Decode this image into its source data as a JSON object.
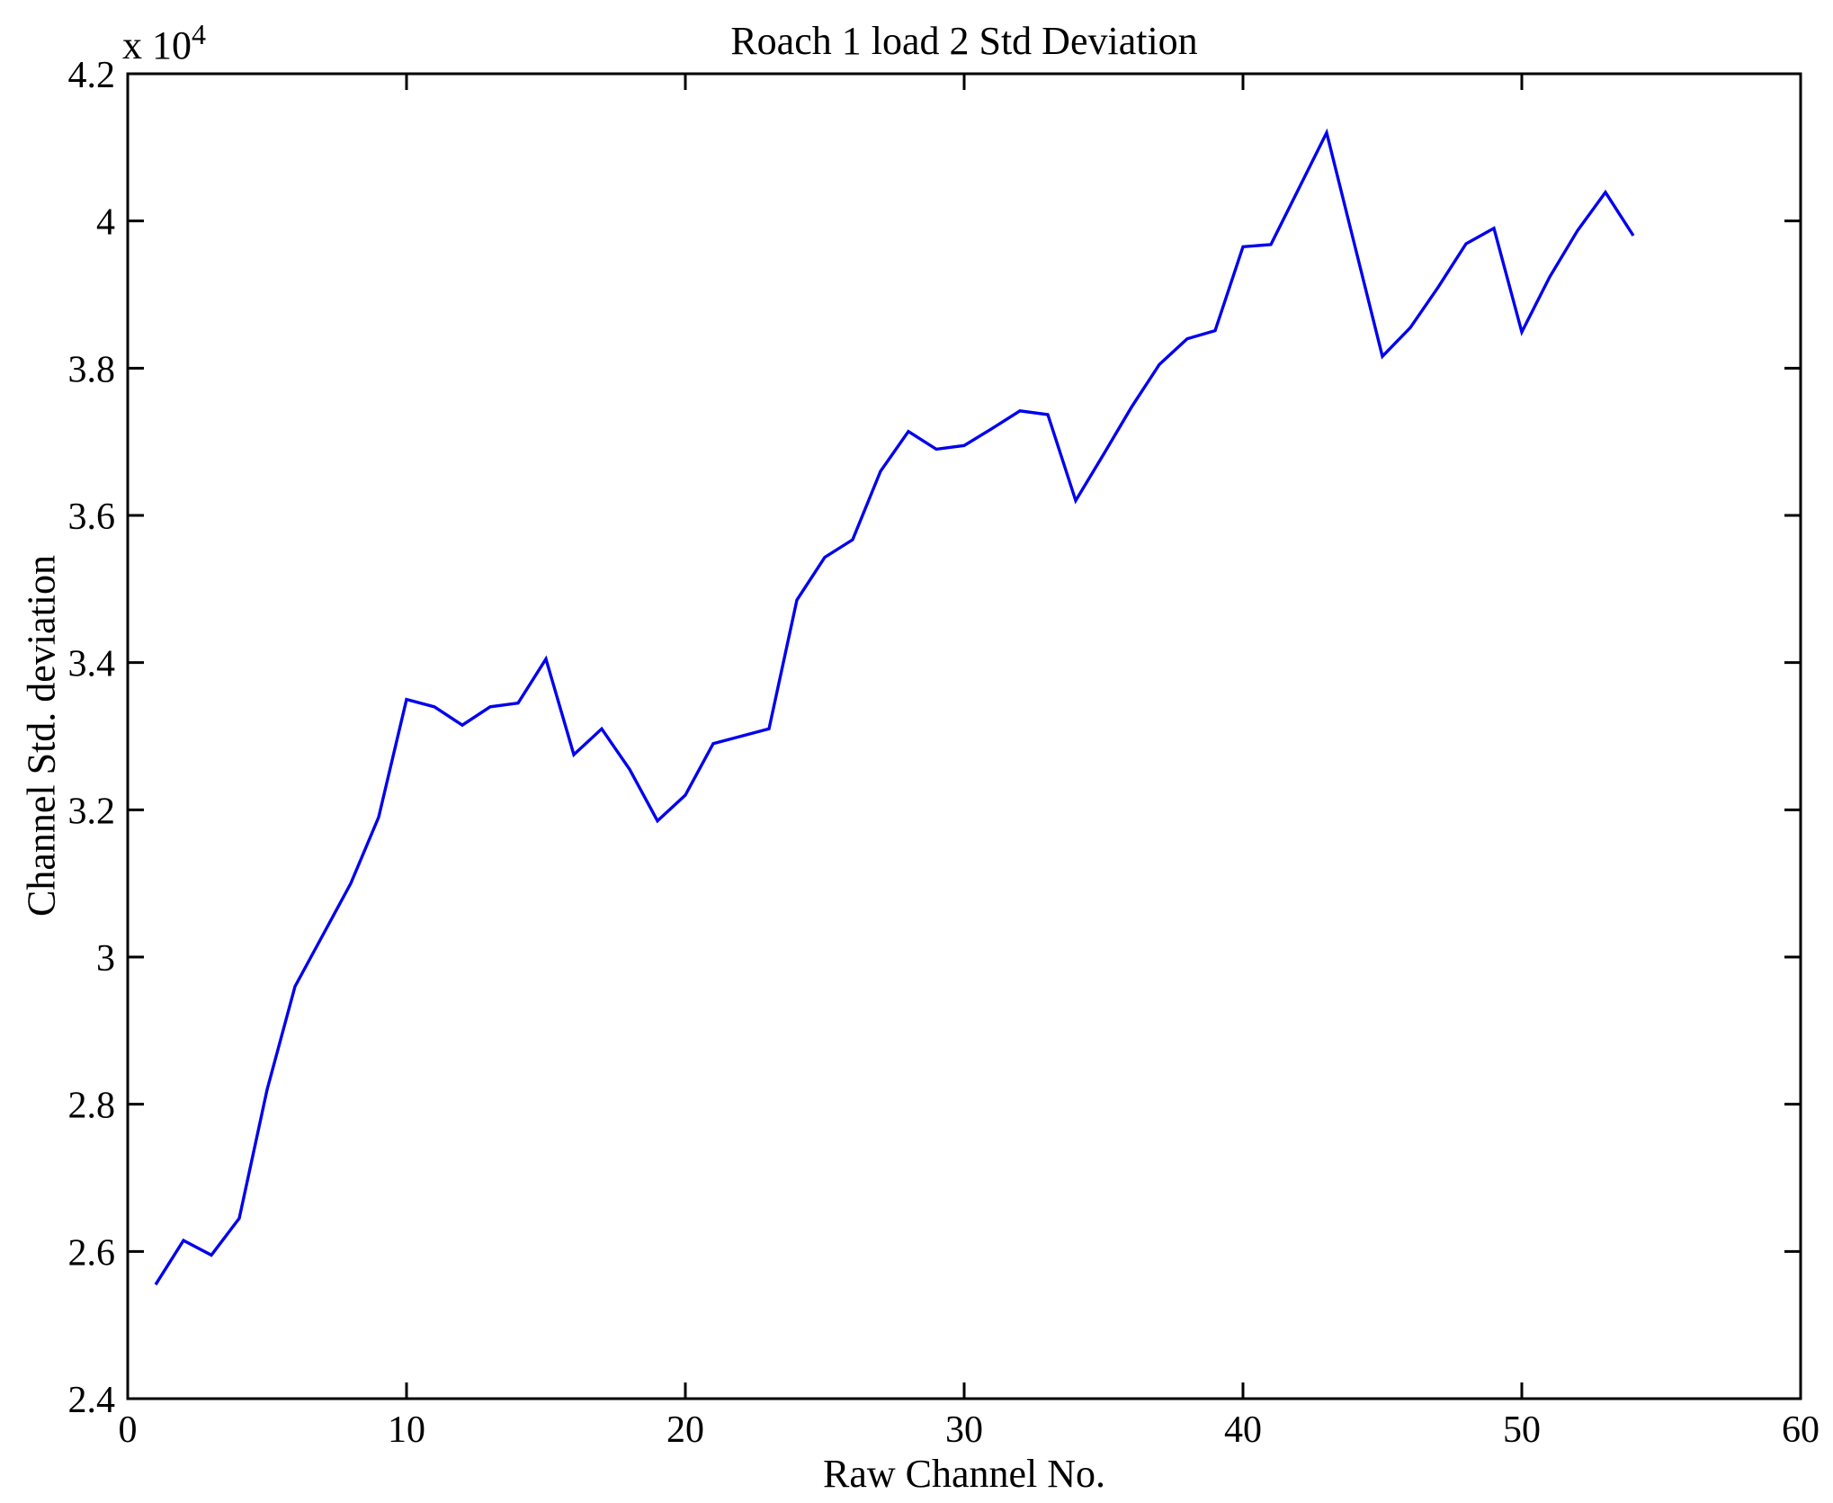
{
  "chart_data": {
    "type": "line",
    "title": "Roach 1 load 2 Std Deviation",
    "xlabel": "Raw Channel No.",
    "ylabel": "Channel Std. deviation",
    "y_scale_label": {
      "prefix": "x 10",
      "exponent": "4"
    },
    "xlim": [
      0,
      60
    ],
    "ylim": [
      2.4,
      4.2
    ],
    "grid": false,
    "legend": false,
    "xticks": {
      "values": [
        0,
        10,
        20,
        30,
        40,
        50,
        60
      ],
      "labels": [
        "0",
        "10",
        "20",
        "30",
        "40",
        "50",
        "60"
      ]
    },
    "yticks": {
      "values": [
        2.4,
        2.6,
        2.8,
        3.0,
        3.2,
        3.4,
        3.6,
        3.8,
        4.0,
        4.2
      ],
      "labels": [
        "2.4",
        "2.6",
        "2.8",
        "3",
        "3.2",
        "3.4",
        "3.6",
        "3.8",
        "4",
        "4.2"
      ]
    },
    "colors": {
      "line": "#0000EE",
      "axis": "#000000",
      "background": "#FFFFFF",
      "text": "#000000"
    },
    "series": [
      {
        "name": "Channel Std deviation",
        "x": [
          1,
          2,
          3,
          4,
          5,
          6,
          7,
          8,
          9,
          10,
          11,
          12,
          13,
          14,
          15,
          16,
          17,
          18,
          19,
          20,
          21,
          22,
          23,
          24,
          25,
          26,
          27,
          28,
          29,
          30,
          31,
          32,
          33,
          34,
          35,
          36,
          37,
          38,
          39,
          40,
          41,
          42,
          43,
          44,
          45,
          46,
          47,
          48,
          49,
          50,
          51,
          52,
          53,
          54
        ],
        "y": [
          2.555,
          2.615,
          2.595,
          2.645,
          2.82,
          2.96,
          3.03,
          3.1,
          3.19,
          3.35,
          3.34,
          3.315,
          3.34,
          3.345,
          3.405,
          3.275,
          3.31,
          3.255,
          3.185,
          3.22,
          3.29,
          3.3,
          3.31,
          3.485,
          3.543,
          3.567,
          3.66,
          3.714,
          3.69,
          3.695,
          3.718,
          3.742,
          3.737,
          3.62,
          3.683,
          3.747,
          3.805,
          3.84,
          3.851,
          3.965,
          3.968,
          4.044,
          4.12,
          3.968,
          3.816,
          3.855,
          3.91,
          3.969,
          3.99,
          3.849,
          3.924,
          3.987,
          4.039,
          3.98
        ]
      }
    ]
  }
}
